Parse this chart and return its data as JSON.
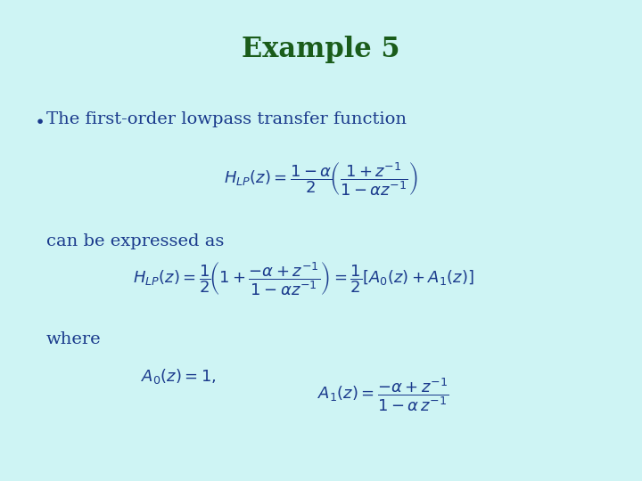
{
  "background_color": "#cef4f4",
  "title": "Example 5",
  "title_color": "#1a5c1a",
  "title_fontsize": 22,
  "text_color": "#1a3a8c",
  "bullet_text": "The first-order lowpass transfer function",
  "text_expressed": "can be expressed as",
  "text_where": "where",
  "fig_width": 7.2,
  "fig_height": 5.4,
  "dpi": 100
}
